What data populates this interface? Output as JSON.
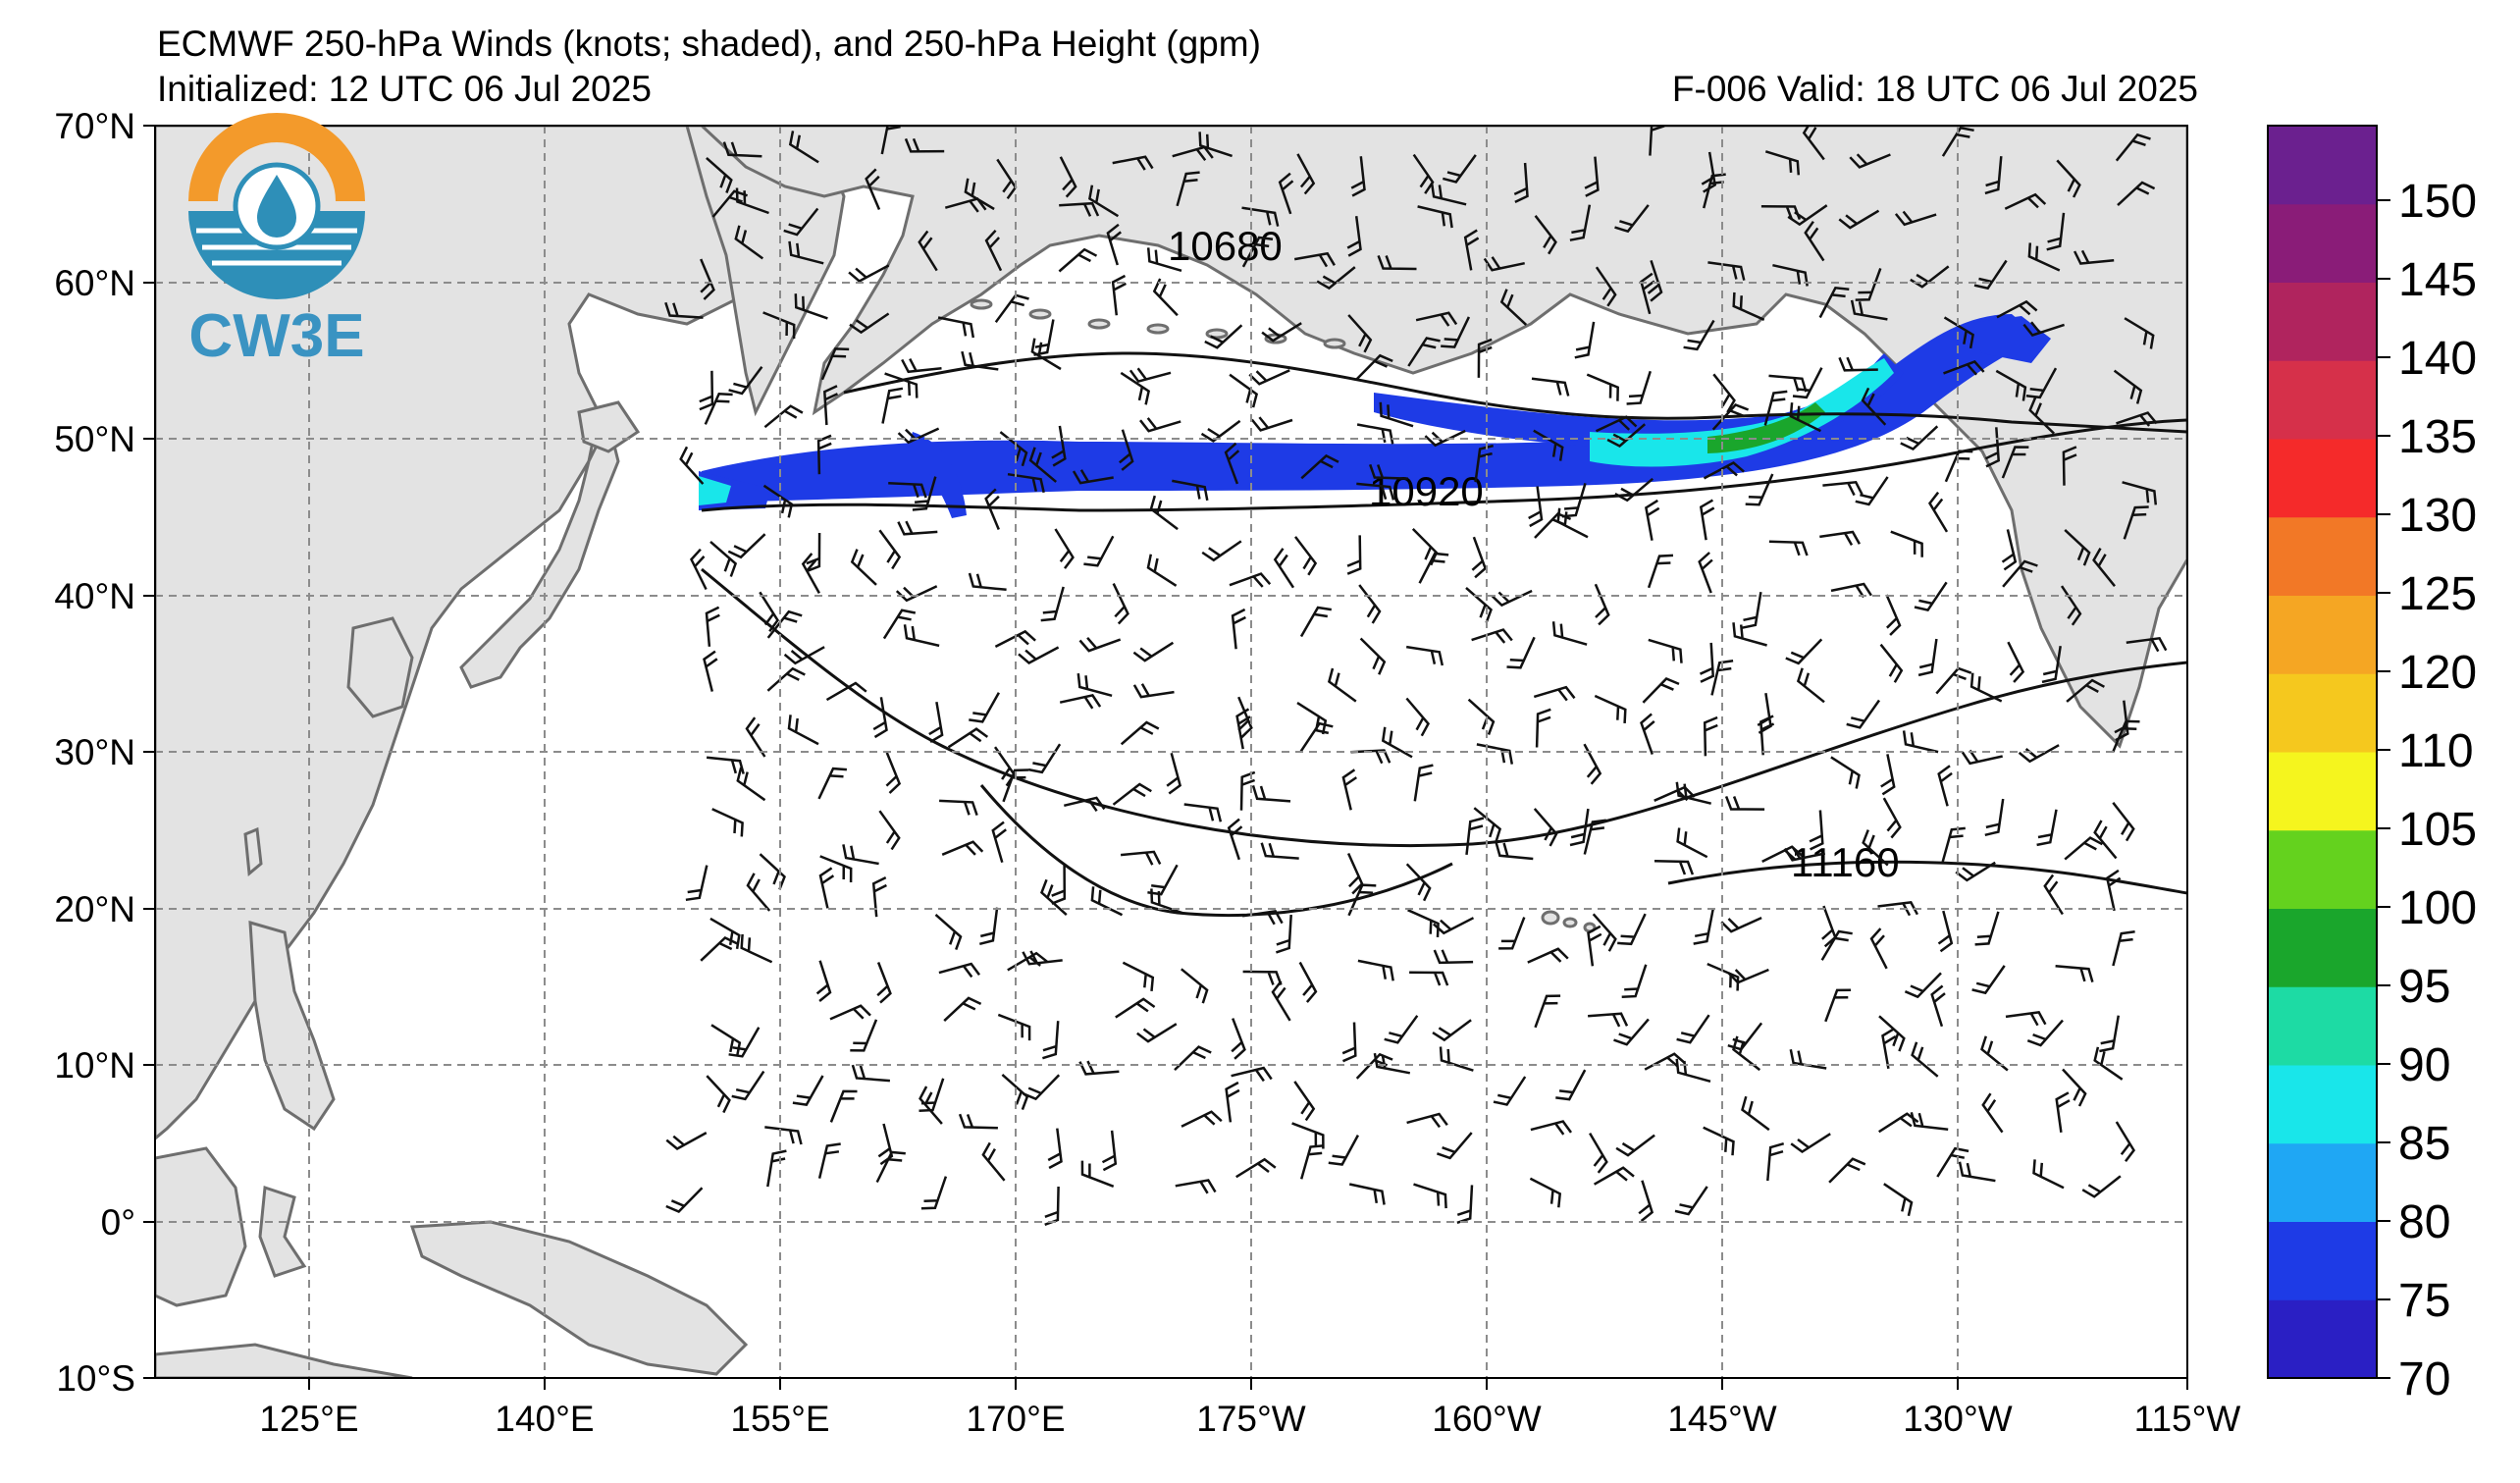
{
  "header": {
    "title": "ECMWF 250-hPa Winds (knots; shaded), and 250-hPa Height (gpm)",
    "initialized": "Initialized: 12 UTC 06 Jul 2025",
    "valid": "F-006  Valid: 18 UTC 06 Jul 2025"
  },
  "logo": {
    "text": "CW3E",
    "colors": {
      "ring": "#F39A2B",
      "water": "#2E8FB8",
      "text": "#3A93C2"
    }
  },
  "axes": {
    "lat_labels": [
      "70°N",
      "60°N",
      "50°N",
      "40°N",
      "30°N",
      "20°N",
      "10°N",
      "0°",
      "10°S"
    ],
    "lon_labels": [
      "125°E",
      "140°E",
      "155°E",
      "170°E",
      "175°W",
      "160°W",
      "145°W",
      "130°W",
      "115°W"
    ]
  },
  "contours": {
    "labels": [
      "10680",
      "10920",
      "11160"
    ]
  },
  "colorbar": {
    "ticks": [
      "150",
      "145",
      "140",
      "135",
      "130",
      "125",
      "120",
      "110",
      "105",
      "100",
      "95",
      "90",
      "85",
      "80",
      "75",
      "70"
    ],
    "colors": [
      "#2A1FC4",
      "#1E3BE6",
      "#1FA7F4",
      "#19E6EA",
      "#1DDBA4",
      "#1AA62C",
      "#64D21E",
      "#F5F51E",
      "#F5C81E",
      "#F5A623",
      "#F27826",
      "#F52A2A",
      "#D6304A",
      "#B0245E",
      "#8A1C78",
      "#6B208F"
    ]
  },
  "colors": {
    "land": "#E3E3E3",
    "coast": "#6E6E6E",
    "grid": "#8C8C8C"
  }
}
